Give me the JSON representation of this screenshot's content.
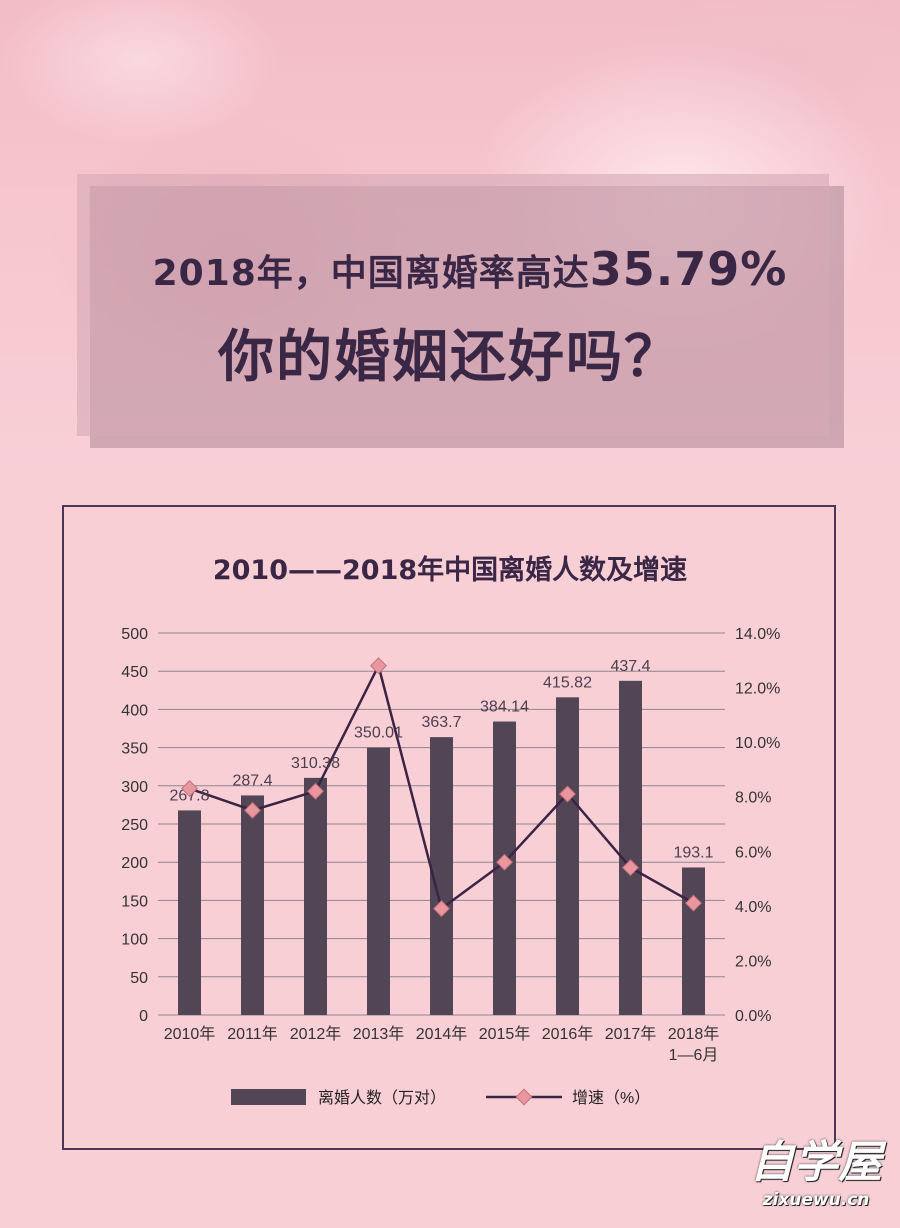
{
  "header": {
    "headline_prefix": "2018年，中国离婚率高达",
    "headline_rate": "35.79%",
    "headline_question": "你的婚姻还好吗？"
  },
  "chart_data": {
    "type": "bar",
    "title": "2010——2018年中国离婚人数及增速",
    "categories": [
      "2010年",
      "2011年",
      "2012年",
      "2013年",
      "2014年",
      "2015年",
      "2016年",
      "2017年",
      "2018年\n1—6月"
    ],
    "series": [
      {
        "name": "离婚人数（万对）",
        "type": "bar",
        "axis": "left",
        "values": [
          267.8,
          287.4,
          310.38,
          350.01,
          363.7,
          384.14,
          415.82,
          437.4,
          193.1
        ],
        "labels": [
          "267.8",
          "287.4",
          "310.38",
          "350.01",
          "363.7",
          "384.14",
          "415.82",
          "437.4",
          "193.1"
        ]
      },
      {
        "name": "增速（%）",
        "type": "line",
        "axis": "right",
        "values": [
          8.3,
          7.5,
          8.2,
          12.8,
          3.9,
          5.6,
          8.1,
          5.4,
          4.1
        ]
      }
    ],
    "y_left": {
      "ylim": [
        0,
        500
      ],
      "ticks": [
        "0",
        "50",
        "100",
        "150",
        "200",
        "250",
        "300",
        "350",
        "400",
        "450",
        "500"
      ]
    },
    "y_right": {
      "ylim": [
        0,
        14
      ],
      "ticks": [
        "0.0%",
        "2.0%",
        "4.0%",
        "6.0%",
        "8.0%",
        "10.0%",
        "12.0%",
        "14.0%"
      ]
    },
    "grid": true,
    "legend_position": "bottom-center",
    "colors": {
      "bar": "#524556",
      "line": "#3b2344",
      "marker": "#e9969e",
      "marker_stroke": "#c4707a",
      "grid": "#8f8590",
      "text": "#333333"
    }
  },
  "watermark": {
    "name": "自学屋",
    "url": "zixuewu.cn"
  }
}
